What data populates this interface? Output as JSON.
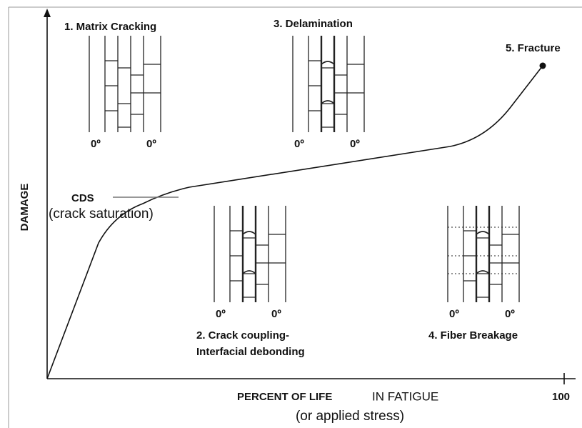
{
  "axes": {
    "y_label": "DAMAGE",
    "x_label_bold": "PERCENT OF LIFE",
    "x_label_rest": "IN FATIGUE",
    "x_label_sub": "(or applied stress)",
    "x_end": "100"
  },
  "cds": {
    "label": "CDS",
    "note": "(crack saturation)"
  },
  "stages": [
    {
      "title": [
        "1. Matrix Cracking"
      ],
      "angles": [
        "0º",
        "0º"
      ]
    },
    {
      "title": [
        "2. Crack coupling-",
        "Interfacial debonding"
      ],
      "angles": [
        "0º",
        "0º"
      ]
    },
    {
      "title": [
        "3. Delamination"
      ],
      "angles": [
        "0º",
        "0º"
      ]
    },
    {
      "title": [
        "4. Fiber Breakage"
      ],
      "angles": [
        "0º",
        "0º"
      ]
    },
    {
      "title": [
        "5. Fracture"
      ]
    }
  ]
}
